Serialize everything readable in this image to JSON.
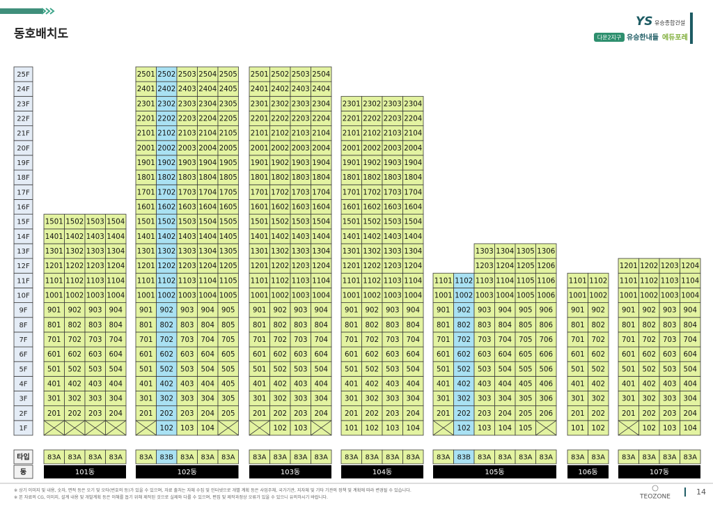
{
  "header": {
    "title": "동호배치도",
    "brand": "YS",
    "company": "유승종합건설",
    "district": "다운2지구",
    "project": "유승한내들",
    "project_accent": "에듀포레"
  },
  "floor_labels": [
    "1F",
    "2F",
    "3F",
    "4F",
    "5F",
    "6F",
    "7F",
    "8F",
    "9F",
    "10F",
    "11F",
    "12F",
    "13F",
    "14F",
    "15F",
    "16F",
    "17F",
    "18F",
    "19F",
    "20F",
    "21F",
    "22F",
    "23F",
    "24F",
    "25F"
  ],
  "type_label": "타입",
  "building_label": "동",
  "colors": {
    "unit": "#e3f3a1",
    "highlight": "#a9e1f3",
    "floor": "#e4ecf6",
    "bar": "#000000"
  },
  "buildings": [
    {
      "name": "101동",
      "columns": [
        {
          "type": "83A",
          "highlight": false,
          "units": [
            null,
            "201",
            "301",
            "401",
            "501",
            "601",
            "701",
            "801",
            "901",
            "1001",
            "1101",
            "1201",
            "1301",
            "1401",
            "1501"
          ]
        },
        {
          "type": "83A",
          "highlight": false,
          "units": [
            null,
            "202",
            "302",
            "402",
            "502",
            "602",
            "702",
            "802",
            "902",
            "1002",
            "1102",
            "1202",
            "1302",
            "1402",
            "1502"
          ]
        },
        {
          "type": "83A",
          "highlight": false,
          "units": [
            null,
            "203",
            "303",
            "403",
            "503",
            "603",
            "703",
            "803",
            "903",
            "1003",
            "1103",
            "1203",
            "1303",
            "1403",
            "1503"
          ]
        },
        {
          "type": "83A",
          "highlight": false,
          "units": [
            null,
            "204",
            "304",
            "404",
            "504",
            "604",
            "704",
            "804",
            "904",
            "1004",
            "1104",
            "1204",
            "1304",
            "1404",
            "1504"
          ]
        }
      ]
    },
    {
      "name": "102동",
      "columns": [
        {
          "type": "83A",
          "highlight": false,
          "units": [
            null,
            "201",
            "301",
            "401",
            "501",
            "601",
            "701",
            "801",
            "901",
            "1001",
            "1101",
            "1201",
            "1301",
            "1401",
            "1501",
            "1601",
            "1701",
            "1801",
            "1901",
            "2001",
            "2101",
            "2201",
            "2301",
            "2401",
            "2501"
          ]
        },
        {
          "type": "83B",
          "highlight": true,
          "units": [
            "102",
            "202",
            "302",
            "402",
            "502",
            "602",
            "702",
            "802",
            "902",
            "1002",
            "1102",
            "1202",
            "1302",
            "1402",
            "1502",
            "1602",
            "1702",
            "1802",
            "1902",
            "2002",
            "2102",
            "2202",
            "2302",
            "2402",
            "2502"
          ]
        },
        {
          "type": "83A",
          "highlight": false,
          "units": [
            "103",
            "203",
            "303",
            "403",
            "503",
            "603",
            "703",
            "803",
            "903",
            "1003",
            "1103",
            "1203",
            "1303",
            "1403",
            "1503",
            "1603",
            "1703",
            "1803",
            "1903",
            "2003",
            "2103",
            "2203",
            "2303",
            "2403",
            "2503"
          ]
        },
        {
          "type": "83A",
          "highlight": false,
          "units": [
            "104",
            "204",
            "304",
            "404",
            "504",
            "604",
            "704",
            "804",
            "904",
            "1004",
            "1104",
            "1204",
            "1304",
            "1404",
            "1504",
            "1604",
            "1704",
            "1804",
            "1904",
            "2004",
            "2104",
            "2204",
            "2304",
            "2404",
            "2504"
          ]
        },
        {
          "type": "83A",
          "highlight": false,
          "units": [
            null,
            "205",
            "305",
            "405",
            "505",
            "605",
            "705",
            "805",
            "905",
            "1005",
            "1105",
            "1205",
            "1305",
            "1405",
            "1505",
            "1605",
            "1705",
            "1805",
            "1905",
            "2005",
            "2105",
            "2205",
            "2305",
            "2405",
            "2505"
          ]
        }
      ]
    },
    {
      "name": "103동",
      "columns": [
        {
          "type": "83A",
          "highlight": false,
          "units": [
            null,
            "201",
            "301",
            "401",
            "501",
            "601",
            "701",
            "801",
            "901",
            "1001",
            "1101",
            "1201",
            "1301",
            "1401",
            "1501",
            "1601",
            "1701",
            "1801",
            "1901",
            "2001",
            "2101",
            "2201",
            "2301",
            "2401",
            "2501"
          ]
        },
        {
          "type": "83A",
          "highlight": false,
          "units": [
            "102",
            "202",
            "302",
            "402",
            "502",
            "602",
            "702",
            "802",
            "902",
            "1002",
            "1102",
            "1202",
            "1302",
            "1402",
            "1502",
            "1602",
            "1702",
            "1802",
            "1902",
            "2002",
            "2102",
            "2202",
            "2302",
            "2402",
            "2502"
          ]
        },
        {
          "type": "83A",
          "highlight": false,
          "units": [
            "103",
            "203",
            "303",
            "403",
            "503",
            "603",
            "703",
            "803",
            "903",
            "1003",
            "1103",
            "1203",
            "1303",
            "1403",
            "1503",
            "1603",
            "1703",
            "1803",
            "1903",
            "2003",
            "2103",
            "2203",
            "2303",
            "2403",
            "2503"
          ]
        },
        {
          "type": "83A",
          "highlight": false,
          "units": [
            null,
            "204",
            "304",
            "404",
            "504",
            "604",
            "704",
            "804",
            "904",
            "1004",
            "1104",
            "1204",
            "1304",
            "1404",
            "1504",
            "1604",
            "1704",
            "1804",
            "1904",
            "2004",
            "2104",
            "2204",
            "2304",
            "2404",
            "2504"
          ]
        }
      ]
    },
    {
      "name": "104동",
      "columns": [
        {
          "type": "83A",
          "highlight": false,
          "units": [
            "101",
            "201",
            "301",
            "401",
            "501",
            "601",
            "701",
            "801",
            "901",
            "1001",
            "1101",
            "1201",
            "1301",
            "1401",
            "1501",
            "1601",
            "1701",
            "1801",
            "1901",
            "2001",
            "2101",
            "2201",
            "2301"
          ]
        },
        {
          "type": "83A",
          "highlight": false,
          "units": [
            "102",
            "202",
            "302",
            "402",
            "502",
            "602",
            "702",
            "802",
            "902",
            "1002",
            "1102",
            "1202",
            "1302",
            "1402",
            "1502",
            "1602",
            "1702",
            "1802",
            "1902",
            "2002",
            "2102",
            "2202",
            "2302"
          ]
        },
        {
          "type": "83A",
          "highlight": false,
          "units": [
            "103",
            "203",
            "303",
            "403",
            "503",
            "603",
            "703",
            "803",
            "903",
            "1003",
            "1103",
            "1203",
            "1303",
            "1403",
            "1503",
            "1603",
            "1703",
            "1803",
            "1903",
            "2003",
            "2103",
            "2203",
            "2303"
          ]
        },
        {
          "type": "83A",
          "highlight": false,
          "units": [
            "104",
            "204",
            "304",
            "404",
            "504",
            "604",
            "704",
            "804",
            "904",
            "1004",
            "1104",
            "1204",
            "1304",
            "1404",
            "1504",
            "1604",
            "1704",
            "1804",
            "1904",
            "2004",
            "2104",
            "2204",
            "2304"
          ]
        }
      ]
    },
    {
      "name": "105동",
      "columns": [
        {
          "type": "83A",
          "highlight": false,
          "units": [
            null,
            "201",
            "301",
            "401",
            "501",
            "601",
            "701",
            "801",
            "901",
            "1001",
            "1101"
          ]
        },
        {
          "type": "83B",
          "highlight": true,
          "units": [
            "102",
            "202",
            "302",
            "402",
            "502",
            "602",
            "702",
            "802",
            "902",
            "1002",
            "1102"
          ]
        },
        {
          "type": "83A",
          "highlight": false,
          "units": [
            "103",
            "203",
            "303",
            "403",
            "503",
            "603",
            "703",
            "803",
            "903",
            "1003",
            "1103",
            "1203",
            "1303"
          ]
        },
        {
          "type": "83A",
          "highlight": false,
          "units": [
            "104",
            "204",
            "304",
            "404",
            "504",
            "604",
            "704",
            "804",
            "904",
            "1004",
            "1104",
            "1204",
            "1304"
          ]
        },
        {
          "type": "83A",
          "highlight": false,
          "units": [
            "105",
            "205",
            "305",
            "405",
            "505",
            "605",
            "705",
            "805",
            "905",
            "1005",
            "1105",
            "1205",
            "1305"
          ]
        },
        {
          "type": "83A",
          "highlight": false,
          "units": [
            null,
            "206",
            "306",
            "406",
            "506",
            "606",
            "706",
            "806",
            "906",
            "1006",
            "1106",
            "1206",
            "1306"
          ]
        }
      ]
    },
    {
      "name": "106동",
      "columns": [
        {
          "type": "83A",
          "highlight": false,
          "units": [
            "101",
            "201",
            "301",
            "401",
            "501",
            "601",
            "701",
            "801",
            "901",
            "1001",
            "1101"
          ]
        },
        {
          "type": "83A",
          "highlight": false,
          "units": [
            "102",
            "202",
            "302",
            "402",
            "502",
            "602",
            "702",
            "802",
            "902",
            "1002",
            "1102"
          ]
        }
      ]
    },
    {
      "name": "107동",
      "columns": [
        {
          "type": "83A",
          "highlight": false,
          "units": [
            null,
            "201",
            "301",
            "401",
            "501",
            "601",
            "701",
            "801",
            "901",
            "1001",
            "1101",
            "1201"
          ]
        },
        {
          "type": "83A",
          "highlight": false,
          "units": [
            "102",
            "202",
            "302",
            "402",
            "502",
            "602",
            "702",
            "802",
            "902",
            "1002",
            "1102",
            "1202"
          ]
        },
        {
          "type": "83A",
          "highlight": false,
          "units": [
            "103",
            "203",
            "303",
            "403",
            "503",
            "603",
            "703",
            "803",
            "903",
            "1003",
            "1103",
            "1203"
          ]
        },
        {
          "type": "83A",
          "highlight": false,
          "units": [
            "104",
            "204",
            "304",
            "404",
            "504",
            "604",
            "704",
            "804",
            "904",
            "1004",
            "1104",
            "1204"
          ]
        }
      ]
    }
  ],
  "footer": {
    "notes": [
      "※ 상기 이미지 및 내용, 숫자, 면적 등은 오기 및 오타(번호의 등)가 있을 수 있으며, 자료 출처는 자체 수집 및 인터넷으로 개별 계획 등은 사업주체, 국가기관, 지자체 및 기타 기관의 정책 및 계획에 따라 변경될 수 있습니다.",
      "※ 본 자료의 CG, 이미지, 설계 내용 및 개발계획 등은 이해를 돕기 위해 제작된 것으로 실제와 다를 수 있으며, 편집 및 제작과정상 오류가 있을 수 있으니 유의하시기 바랍니다."
    ],
    "logo": "TEOZONE",
    "page": "14"
  }
}
